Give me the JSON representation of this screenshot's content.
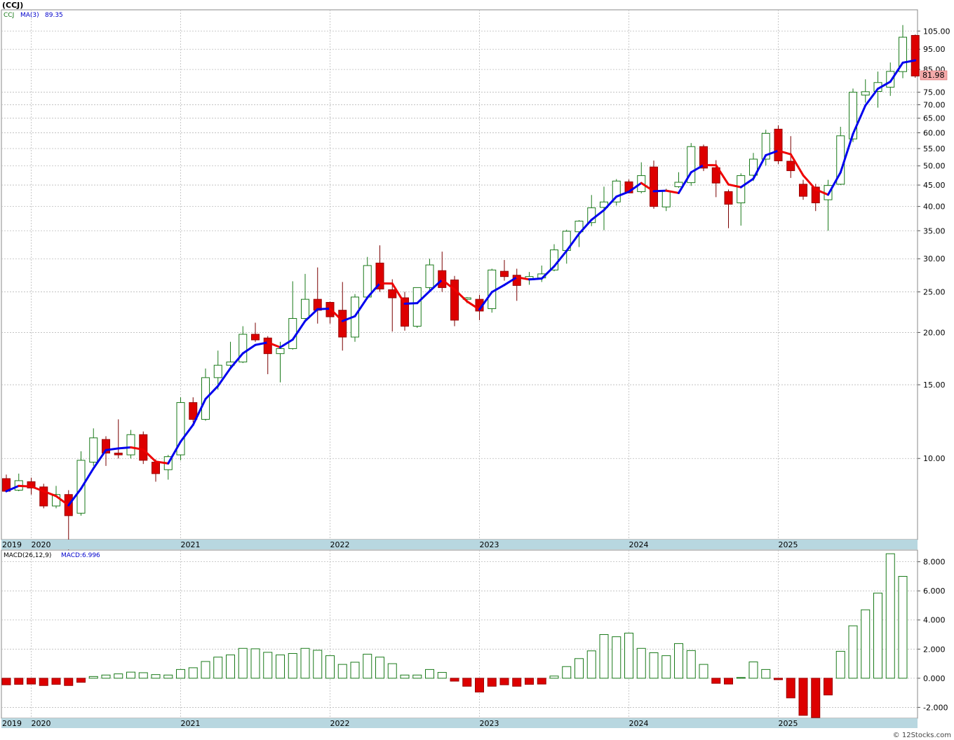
{
  "title": "(CCJ)",
  "credit": "© 12Stocks.com",
  "colors": {
    "up": "#1a7a1a",
    "down": "#dd0000",
    "ma_up": "#0000ee",
    "ma_down": "#ee0000",
    "axis_band": "#b8d7e0",
    "grid": "#bbbbbb",
    "last_price_bg": "#f4aaaa"
  },
  "chart_data": [
    {
      "type": "candlestick",
      "symbol": "CCJ",
      "legend": {
        "symbol": "CCJ",
        "indicator": "MA(3)",
        "value": "89.35"
      },
      "scale": "log",
      "ylim": [
        6.4,
        118
      ],
      "y_ticks": [
        "105.00",
        "95.00",
        "85.00",
        "75.00",
        "70.00",
        "65.00",
        "60.00",
        "55.00",
        "50.00",
        "45.00",
        "40.00",
        "35.00",
        "30.00",
        "25.00",
        "20.00",
        "15.00",
        "10.00"
      ],
      "x_labels": [
        {
          "label": "2019",
          "index": -0.5
        },
        {
          "label": "2020",
          "index": 2
        },
        {
          "label": "2021",
          "index": 14
        },
        {
          "label": "2022",
          "index": 26
        },
        {
          "label": "2023",
          "index": 38
        },
        {
          "label": "2024",
          "index": 50
        },
        {
          "label": "2025",
          "index": 62
        }
      ],
      "last_price": "81.98",
      "candles": [
        [
          8.95,
          8.35,
          9.15,
          8.3
        ],
        [
          8.4,
          8.85,
          9.2,
          8.35
        ],
        [
          8.8,
          8.5,
          9.0,
          8.2
        ],
        [
          8.55,
          7.7,
          8.7,
          7.6
        ],
        [
          7.7,
          8.2,
          8.6,
          7.6
        ],
        [
          8.2,
          7.3,
          8.4,
          5.6
        ],
        [
          7.4,
          9.9,
          10.4,
          7.3
        ],
        [
          9.8,
          11.2,
          11.8,
          9.6
        ],
        [
          11.1,
          10.3,
          11.3,
          9.6
        ],
        [
          10.3,
          10.2,
          12.4,
          10.0
        ],
        [
          10.2,
          11.4,
          11.7,
          10.0
        ],
        [
          11.4,
          9.9,
          11.6,
          9.7
        ],
        [
          9.8,
          9.2,
          9.95,
          8.8
        ],
        [
          9.4,
          10.1,
          10.2,
          8.9
        ],
        [
          10.2,
          13.6,
          14.0,
          9.9
        ],
        [
          13.6,
          12.4,
          14.0,
          12.2
        ],
        [
          12.4,
          15.6,
          16.4,
          12.3
        ],
        [
          15.6,
          16.7,
          18.1,
          14.6
        ],
        [
          16.7,
          17.0,
          19.0,
          16.4
        ],
        [
          17.0,
          19.8,
          20.7,
          16.9
        ],
        [
          19.8,
          19.2,
          21.1,
          19.0
        ],
        [
          19.4,
          17.8,
          19.6,
          15.9
        ],
        [
          17.8,
          18.3,
          19.0,
          15.2
        ],
        [
          18.3,
          21.6,
          26.5,
          18.2
        ],
        [
          21.6,
          24.0,
          27.6,
          21.5
        ],
        [
          24.0,
          22.6,
          28.6,
          21.0
        ],
        [
          23.6,
          21.8,
          23.7,
          21.0
        ],
        [
          22.6,
          19.5,
          26.4,
          18.1
        ],
        [
          19.5,
          24.3,
          24.7,
          19.0
        ],
        [
          24.3,
          28.9,
          30.3,
          24.0
        ],
        [
          29.3,
          25.4,
          32.3,
          25.0
        ],
        [
          25.3,
          24.2,
          26.8,
          20.1
        ],
        [
          24.2,
          20.7,
          25.0,
          20.2
        ],
        [
          20.7,
          25.6,
          25.6,
          20.5
        ],
        [
          25.6,
          29.0,
          30.0,
          25.0
        ],
        [
          28.1,
          25.6,
          31.2,
          25.0
        ],
        [
          26.7,
          21.4,
          27.3,
          20.7
        ],
        [
          24.0,
          24.2,
          24.3,
          23.5
        ],
        [
          24.0,
          22.5,
          24.6,
          21.4
        ],
        [
          22.8,
          28.2,
          28.4,
          22.3
        ],
        [
          28.0,
          27.2,
          29.8,
          26.6
        ],
        [
          27.4,
          25.9,
          28.4,
          23.8
        ],
        [
          26.9,
          27.2,
          27.9,
          26.0
        ],
        [
          27.0,
          27.6,
          28.9,
          26.4
        ],
        [
          28.2,
          31.5,
          32.5,
          28.0
        ],
        [
          31.4,
          34.9,
          35.2,
          29.2
        ],
        [
          34.8,
          36.9,
          37.1,
          32.0
        ],
        [
          36.6,
          39.7,
          42.6,
          35.9
        ],
        [
          39.8,
          41.0,
          44.6,
          35.1
        ],
        [
          41.0,
          46.0,
          46.5,
          40.2
        ],
        [
          45.8,
          43.1,
          46.4,
          43.0
        ],
        [
          43.4,
          47.4,
          51.0,
          43.0
        ],
        [
          49.7,
          40.0,
          51.5,
          39.5
        ],
        [
          39.9,
          43.5,
          44.1,
          39.0
        ],
        [
          44.6,
          45.7,
          48.3,
          44.3
        ],
        [
          45.6,
          55.6,
          56.7,
          44.8
        ],
        [
          55.6,
          49.4,
          56.2,
          48.6
        ],
        [
          49.5,
          45.5,
          51.6,
          42.1
        ],
        [
          43.4,
          40.5,
          43.9,
          35.5
        ],
        [
          40.8,
          47.4,
          48.0,
          36.0
        ],
        [
          47.5,
          51.9,
          53.7,
          46.0
        ],
        [
          51.9,
          59.8,
          61.0,
          50.1
        ],
        [
          61.2,
          51.4,
          62.5,
          50.5
        ],
        [
          51.3,
          48.7,
          58.9,
          46.8
        ],
        [
          45.2,
          42.3,
          46.3,
          41.5
        ],
        [
          44.5,
          40.8,
          45.3,
          39.0
        ],
        [
          41.5,
          44.9,
          46.3,
          35.0
        ],
        [
          45.2,
          59.0,
          62.0,
          45.0
        ],
        [
          58.0,
          75.0,
          76.5,
          57.0
        ],
        [
          73.8,
          75.2,
          80.5,
          70.8
        ],
        [
          75.3,
          79.1,
          84.0,
          68.9
        ],
        [
          77.1,
          84.1,
          88.3,
          73.5
        ],
        [
          84.0,
          101.5,
          108.5,
          81.0
        ],
        [
          102.5,
          81.98,
          103.0,
          81.2
        ]
      ],
      "ma": [
        8.35,
        8.6,
        8.57,
        8.35,
        8.13,
        7.73,
        8.47,
        9.47,
        10.47,
        10.57,
        10.63,
        10.5,
        9.83,
        9.73,
        10.97,
        12.03,
        13.87,
        14.9,
        16.43,
        17.83,
        18.67,
        18.93,
        18.43,
        19.23,
        21.3,
        22.73,
        22.8,
        21.3,
        21.87,
        24.23,
        26.2,
        26.17,
        23.43,
        23.5,
        25.1,
        26.73,
        25.33,
        23.73,
        22.7,
        24.97,
        25.97,
        27.1,
        26.77,
        26.9,
        28.77,
        31.33,
        34.43,
        37.17,
        39.2,
        42.23,
        43.37,
        45.5,
        43.5,
        43.63,
        43.07,
        48.27,
        50.23,
        50.17,
        45.13,
        44.47,
        46.6,
        53.03,
        54.37,
        53.3,
        47.47,
        43.93,
        42.67,
        48.23,
        59.63,
        69.73,
        76.43,
        79.47,
        88.23,
        89.35
      ],
      "ma_dir": [
        "up",
        "up",
        "down",
        "down",
        "down",
        "down",
        "up",
        "up",
        "up",
        "up",
        "up",
        "down",
        "down",
        "down",
        "up",
        "up",
        "up",
        "up",
        "up",
        "up",
        "up",
        "up",
        "down",
        "up",
        "up",
        "up",
        "up",
        "down",
        "up",
        "up",
        "up",
        "down",
        "down",
        "up",
        "up",
        "up",
        "down",
        "down",
        "down",
        "up",
        "up",
        "up",
        "down",
        "up",
        "up",
        "up",
        "up",
        "up",
        "up",
        "up",
        "up",
        "up",
        "down",
        "up",
        "down",
        "up",
        "up",
        "down",
        "down",
        "down",
        "up",
        "up",
        "up",
        "down",
        "down",
        "down",
        "down",
        "up",
        "up",
        "up",
        "up",
        "up",
        "up",
        "up"
      ]
    },
    {
      "type": "bar",
      "indicator": "MACD(26,12,9)",
      "legend_value": "MACD:6.996",
      "ylim": [
        -2.75,
        8.8
      ],
      "y_ticks": [
        "8.000",
        "6.000",
        "4.000",
        "2.000",
        "0.000",
        "-2.000"
      ],
      "values": [
        -0.45,
        -0.42,
        -0.4,
        -0.5,
        -0.42,
        -0.5,
        -0.28,
        0.12,
        0.22,
        0.3,
        0.42,
        0.38,
        0.25,
        0.22,
        0.6,
        0.72,
        1.15,
        1.45,
        1.6,
        2.05,
        2.02,
        1.78,
        1.6,
        1.7,
        2.05,
        1.92,
        1.55,
        0.95,
        1.1,
        1.65,
        1.45,
        1.0,
        0.22,
        0.22,
        0.6,
        0.4,
        -0.2,
        -0.55,
        -0.95,
        -0.55,
        -0.45,
        -0.55,
        -0.42,
        -0.4,
        0.15,
        0.8,
        1.35,
        1.88,
        3.0,
        2.85,
        3.1,
        2.05,
        1.75,
        1.55,
        2.38,
        1.9,
        0.95,
        -0.35,
        -0.4,
        0.05,
        1.12,
        0.6,
        -0.1,
        -1.35,
        -2.55,
        -2.7,
        -1.15,
        1.85,
        3.6,
        4.7,
        5.85,
        8.55,
        6.996
      ]
    }
  ]
}
